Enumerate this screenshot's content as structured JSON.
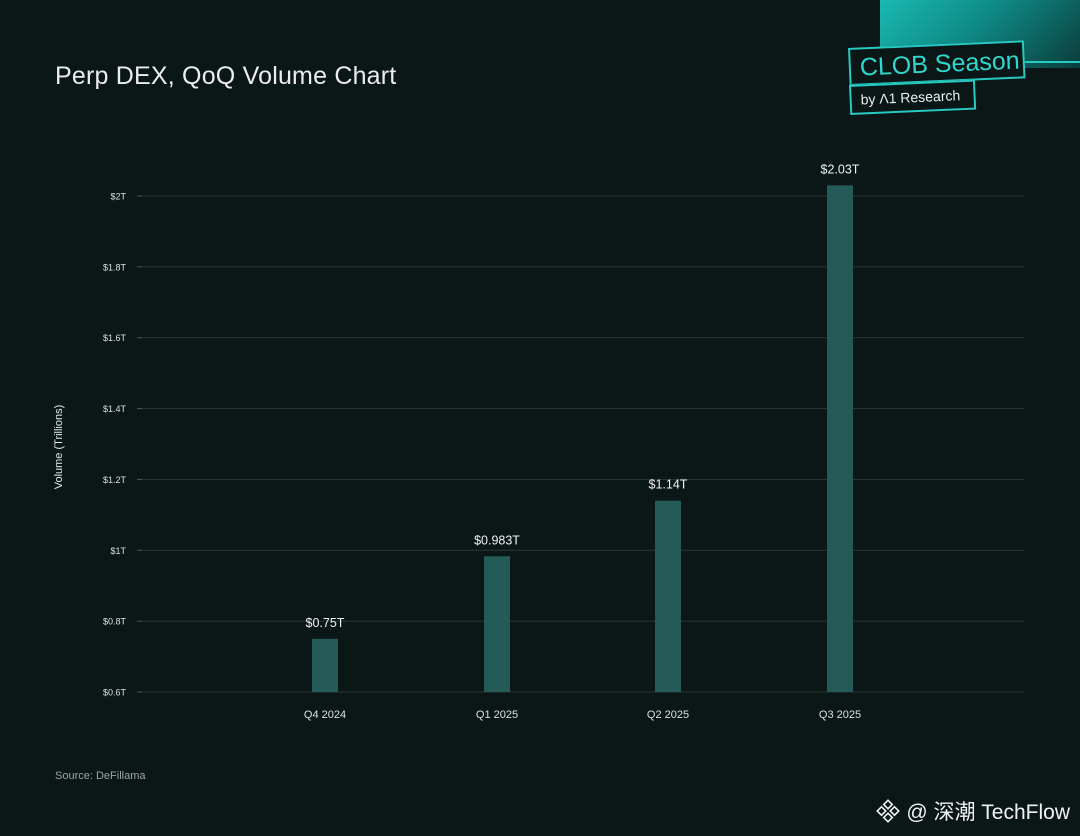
{
  "header": {
    "title": "Perp DEX, QoQ Volume Chart"
  },
  "brand": {
    "name": "CLOB Season",
    "byline": "by Λ1 Research"
  },
  "source_text": "Source: DeFillama",
  "watermark": {
    "icon": "binance-diamond-icon",
    "text": "@ 深潮 TechFlow"
  },
  "colors": {
    "background": "#0b1616",
    "bar": "#245b59",
    "accent": "#27c9c0"
  },
  "chart_data": {
    "type": "bar",
    "title": "Perp DEX, QoQ Volume Chart",
    "ylabel": "Volume (Trillions)",
    "xlabel": "",
    "categories": [
      "Q4 2024",
      "Q1 2025",
      "Q2 2025",
      "Q3 2025"
    ],
    "values": [
      0.75,
      0.983,
      1.14,
      2.03
    ],
    "data_labels": [
      "$0.75T",
      "$0.983T",
      "$1.14T",
      "$2.03T"
    ],
    "ylim": [
      0.6,
      2.0
    ],
    "yticks": [
      0.6,
      0.8,
      1.0,
      1.2,
      1.4,
      1.6,
      1.8,
      2.0
    ],
    "ytick_labels": [
      "$0.6T",
      "$0.8T",
      "$1T",
      "$1.2T",
      "$1.4T",
      "$1.6T",
      "$1.8T",
      "$2T"
    ],
    "grid": true,
    "legend": "none"
  }
}
